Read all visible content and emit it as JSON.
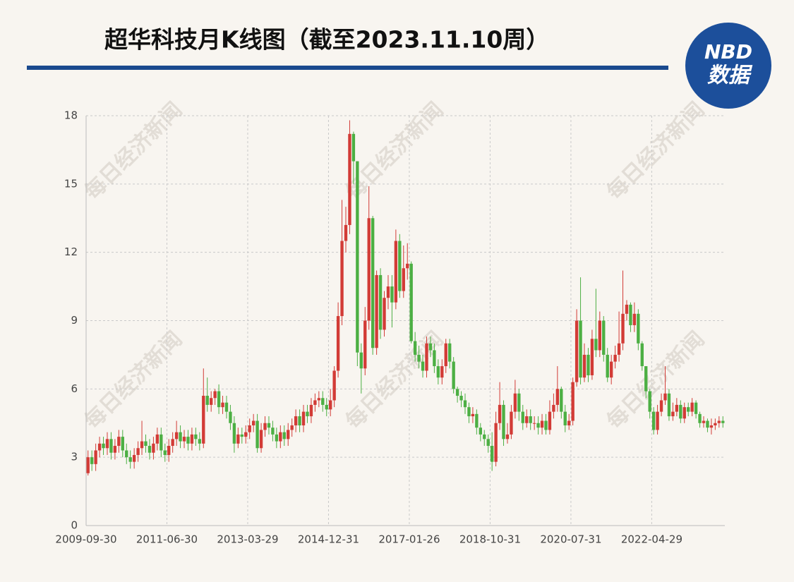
{
  "chart_data": {
    "type": "candlestick",
    "title": "超华科技月K线图（截至2023.11.10周）",
    "logo": {
      "text": "NBD",
      "subtext": "数据"
    },
    "watermark": "每日经济新闻",
    "up_color": "#d23b36",
    "down_color": "#4caf43",
    "grid": true,
    "ylim": [
      0,
      18
    ],
    "yticks": [
      0,
      3,
      6,
      9,
      12,
      15,
      18
    ],
    "categories": [
      "2009-09-30",
      null,
      null,
      null,
      null,
      null,
      null,
      null,
      null,
      null,
      null,
      null,
      null,
      null,
      null,
      null,
      null,
      null,
      null,
      null,
      null,
      "2011-06-30",
      null,
      null,
      null,
      null,
      null,
      null,
      null,
      null,
      null,
      null,
      null,
      null,
      null,
      null,
      null,
      null,
      null,
      null,
      null,
      null,
      "2013-03-29",
      null,
      null,
      null,
      null,
      null,
      null,
      null,
      null,
      null,
      null,
      null,
      null,
      null,
      null,
      null,
      null,
      null,
      null,
      null,
      null,
      "2014-12-31",
      null,
      null,
      null,
      null,
      null,
      null,
      null,
      null,
      null,
      null,
      null,
      null,
      null,
      null,
      null,
      null,
      null,
      null,
      null,
      null,
      "2017-01-26",
      null,
      null,
      null,
      null,
      null,
      null,
      null,
      null,
      null,
      null,
      null,
      null,
      null,
      null,
      null,
      null,
      null,
      null,
      null,
      null,
      "2018-10-31",
      null,
      null,
      null,
      null,
      null,
      null,
      null,
      null,
      null,
      null,
      null,
      null,
      null,
      null,
      null,
      null,
      null,
      null,
      null,
      null,
      "2020-07-31",
      null,
      null,
      null,
      null,
      null,
      null,
      null,
      null,
      null,
      null,
      null,
      null,
      null,
      null,
      null,
      null,
      null,
      null,
      null,
      null,
      "2022-04-29",
      null,
      null,
      null,
      null,
      null,
      null,
      null,
      null,
      null,
      null,
      null,
      null,
      null,
      null,
      null,
      null,
      null,
      null
    ],
    "open": [
      2.3,
      3.0,
      2.7,
      3.3,
      3.6,
      3.4,
      3.8,
      3.2,
      3.5,
      3.9,
      3.3,
      3.0,
      2.8,
      3.1,
      3.4,
      3.7,
      3.5,
      3.2,
      3.6,
      4.0,
      3.3,
      3.1,
      3.5,
      3.8,
      4.1,
      3.7,
      3.9,
      3.6,
      4.0,
      3.8,
      3.6,
      5.7,
      5.3,
      5.6,
      5.9,
      5.2,
      5.4,
      5.0,
      4.5,
      3.6,
      4.0,
      3.9,
      4.1,
      4.4,
      4.6,
      3.4,
      4.2,
      4.5,
      4.3,
      4.0,
      3.7,
      4.1,
      3.8,
      4.2,
      4.4,
      4.8,
      4.4,
      5.0,
      4.8,
      5.3,
      5.5,
      5.6,
      5.3,
      5.1,
      5.5,
      6.8,
      9.2,
      12.5,
      13.2,
      17.2,
      16.0,
      7.6,
      6.9,
      9.0,
      13.5,
      7.8,
      11.0,
      8.6,
      10.0,
      10.5,
      9.8,
      12.5,
      10.3,
      11.3,
      11.5,
      8.1,
      7.5,
      7.2,
      6.8,
      8.0,
      7.7,
      7.0,
      6.5,
      7.0,
      8.0,
      7.2,
      6.0,
      5.7,
      5.5,
      5.2,
      4.8,
      4.9,
      4.3,
      4.0,
      3.8,
      3.5,
      2.8,
      4.5,
      5.3,
      3.8,
      4.0,
      5.0,
      5.8,
      5.0,
      4.5,
      4.8,
      4.5,
      4.5,
      4.3,
      4.6,
      4.2,
      5.0,
      5.3,
      6.0,
      5.0,
      4.4,
      4.6,
      6.3,
      9.0,
      6.5,
      7.5,
      6.6,
      8.2,
      7.7,
      9.0,
      7.5,
      6.5,
      7.2,
      7.5,
      8.0,
      9.3,
      9.7,
      8.8,
      9.3,
      8.0,
      7.0,
      5.9,
      5.0,
      4.2,
      5.0,
      5.5,
      5.8,
      4.8,
      5.0,
      5.3,
      4.7,
      5.2,
      5.0,
      5.4,
      4.9,
      4.5,
      4.6,
      4.3,
      4.4,
      4.5,
      4.6
    ],
    "close": [
      3.0,
      2.7,
      3.3,
      3.6,
      3.4,
      3.8,
      3.2,
      3.5,
      3.9,
      3.3,
      3.0,
      2.8,
      3.1,
      3.4,
      3.7,
      3.5,
      3.2,
      3.6,
      4.0,
      3.3,
      3.1,
      3.5,
      3.8,
      4.1,
      3.7,
      3.9,
      3.6,
      4.0,
      3.8,
      3.6,
      5.7,
      5.3,
      5.6,
      5.9,
      5.2,
      5.4,
      5.0,
      4.5,
      3.6,
      4.0,
      3.9,
      4.1,
      4.4,
      4.6,
      3.4,
      4.2,
      4.5,
      4.3,
      4.0,
      3.7,
      4.1,
      3.8,
      4.2,
      4.4,
      4.8,
      4.4,
      5.0,
      4.8,
      5.3,
      5.5,
      5.6,
      5.3,
      5.1,
      5.5,
      6.8,
      9.2,
      12.5,
      13.2,
      17.2,
      16.0,
      7.6,
      6.9,
      9.0,
      13.5,
      7.8,
      11.0,
      8.6,
      10.0,
      10.5,
      9.8,
      12.5,
      10.3,
      11.3,
      11.5,
      8.1,
      7.5,
      7.2,
      6.8,
      8.0,
      7.7,
      7.0,
      6.5,
      7.0,
      8.0,
      7.2,
      6.0,
      5.7,
      5.5,
      5.2,
      4.8,
      4.9,
      4.3,
      4.0,
      3.8,
      3.5,
      2.8,
      4.5,
      5.3,
      3.8,
      4.0,
      5.0,
      5.8,
      5.0,
      4.5,
      4.8,
      4.5,
      4.5,
      4.3,
      4.6,
      4.2,
      5.0,
      5.3,
      6.0,
      5.0,
      4.4,
      4.6,
      6.3,
      9.0,
      6.5,
      7.5,
      6.6,
      8.2,
      7.7,
      9.0,
      7.5,
      6.5,
      7.2,
      7.5,
      8.0,
      9.3,
      9.7,
      8.8,
      9.3,
      8.0,
      7.0,
      5.9,
      5.0,
      4.2,
      5.0,
      5.5,
      5.8,
      4.8,
      5.0,
      5.3,
      4.7,
      5.2,
      5.0,
      5.4,
      4.9,
      4.5,
      4.6,
      4.3,
      4.4,
      4.5,
      4.6,
      4.5
    ],
    "high": [
      3.3,
      3.3,
      3.6,
      3.9,
      3.9,
      4.1,
      4.1,
      3.8,
      4.2,
      4.2,
      3.6,
      3.3,
      3.4,
      3.7,
      4.6,
      4.0,
      3.8,
      3.9,
      4.3,
      4.3,
      3.6,
      3.8,
      4.1,
      4.6,
      4.4,
      4.2,
      4.2,
      4.3,
      4.3,
      4.1,
      6.9,
      6.5,
      5.9,
      6.0,
      6.2,
      5.7,
      5.7,
      5.3,
      4.8,
      4.3,
      4.3,
      4.4,
      4.7,
      4.9,
      4.9,
      4.5,
      4.8,
      4.8,
      4.6,
      4.3,
      4.4,
      4.4,
      4.5,
      4.7,
      5.1,
      5.1,
      5.3,
      5.3,
      5.6,
      5.8,
      5.9,
      5.9,
      5.6,
      6.0,
      7.0,
      9.8,
      14.3,
      14.0,
      17.8,
      17.3,
      16.0,
      8.0,
      9.6,
      14.9,
      13.6,
      11.2,
      11.3,
      10.3,
      11.0,
      11.0,
      13.0,
      12.8,
      12.3,
      12.4,
      11.6,
      8.5,
      7.9,
      7.5,
      8.3,
      8.3,
      8.0,
      7.3,
      7.3,
      8.2,
      8.2,
      7.4,
      6.1,
      5.9,
      5.8,
      5.4,
      5.2,
      5.1,
      4.5,
      4.2,
      4.0,
      4.1,
      5.0,
      6.3,
      5.5,
      4.5,
      5.3,
      6.4,
      6.0,
      5.3,
      5.1,
      5.1,
      4.8,
      4.8,
      4.9,
      4.9,
      5.5,
      5.8,
      7.0,
      6.1,
      5.3,
      4.9,
      6.5,
      9.5,
      10.9,
      8.0,
      7.8,
      8.6,
      10.4,
      9.4,
      9.2,
      7.8,
      7.5,
      7.9,
      9.4,
      11.2,
      9.9,
      9.8,
      9.8,
      9.5,
      8.1,
      7.0,
      6.0,
      5.2,
      5.3,
      5.8,
      7.0,
      6.0,
      5.4,
      5.6,
      5.5,
      5.4,
      5.4,
      5.6,
      5.5,
      5.0,
      4.8,
      4.7,
      4.7,
      4.7,
      4.8,
      4.8
    ],
    "low": [
      2.2,
      2.4,
      2.4,
      3.0,
      3.1,
      3.1,
      2.9,
      2.9,
      3.2,
      3.0,
      2.7,
      2.5,
      2.5,
      2.8,
      3.1,
      3.2,
      2.9,
      2.9,
      3.3,
      3.0,
      2.8,
      2.8,
      3.2,
      3.5,
      3.4,
      3.4,
      3.3,
      3.3,
      3.5,
      3.3,
      3.4,
      5.0,
      5.0,
      5.3,
      4.9,
      4.9,
      4.7,
      4.2,
      3.2,
      3.4,
      3.6,
      3.6,
      3.8,
      4.1,
      3.2,
      3.2,
      3.9,
      4.0,
      3.7,
      3.4,
      3.4,
      3.5,
      3.5,
      3.9,
      4.1,
      4.1,
      4.1,
      4.5,
      4.5,
      5.0,
      5.2,
      5.0,
      4.8,
      4.8,
      5.2,
      6.5,
      8.8,
      12.0,
      12.8,
      15.0,
      7.0,
      5.8,
      6.6,
      8.6,
      7.5,
      7.5,
      8.2,
      8.3,
      9.5,
      8.7,
      9.5,
      10.0,
      10.0,
      10.8,
      8.0,
      7.2,
      6.9,
      6.5,
      6.5,
      7.4,
      6.7,
      6.2,
      6.2,
      6.7,
      6.9,
      5.8,
      5.4,
      5.2,
      4.9,
      4.5,
      4.5,
      4.0,
      3.7,
      3.5,
      3.2,
      2.4,
      2.6,
      4.2,
      3.5,
      3.6,
      3.8,
      4.7,
      4.6,
      4.2,
      4.3,
      4.2,
      4.2,
      4.0,
      4.0,
      4.0,
      4.0,
      4.7,
      5.0,
      4.7,
      4.1,
      4.2,
      4.4,
      6.1,
      6.2,
      6.3,
      6.3,
      6.4,
      7.4,
      7.4,
      7.2,
      6.3,
      6.2,
      6.9,
      7.2,
      7.7,
      9.0,
      8.5,
      8.5,
      7.7,
      6.8,
      5.6,
      4.7,
      4.0,
      4.0,
      4.8,
      5.3,
      4.6,
      4.6,
      4.8,
      4.5,
      4.5,
      4.8,
      4.8,
      4.7,
      4.3,
      4.3,
      4.1,
      4.0,
      4.2,
      4.3,
      4.3
    ]
  }
}
